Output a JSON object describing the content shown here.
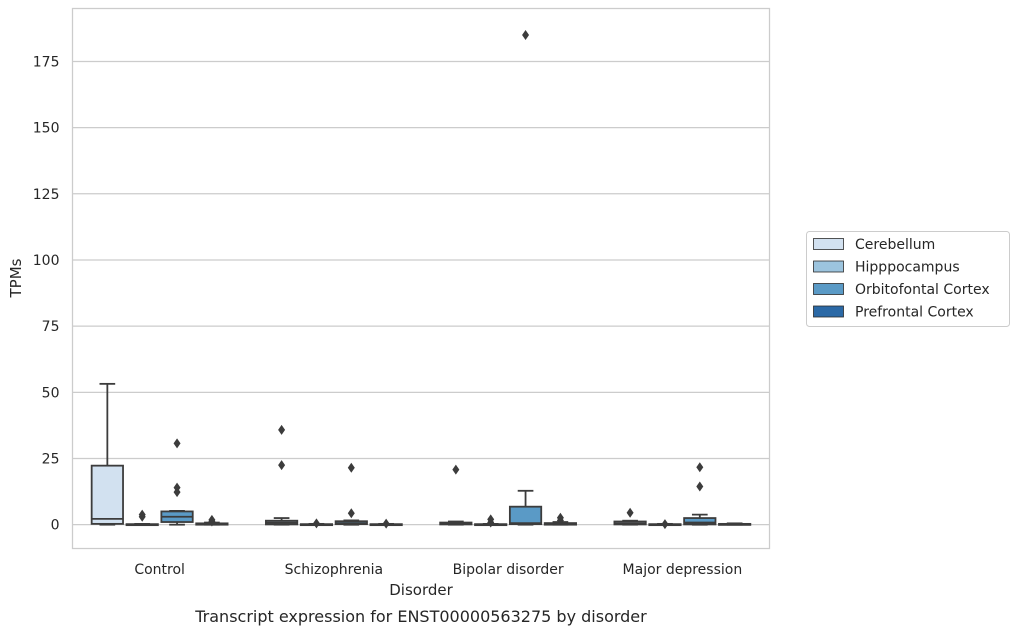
{
  "chart_data": {
    "type": "box",
    "caption": "Transcript expression for ENST00000563275 by disorder",
    "xlabel": "Disorder",
    "ylabel": "TPMs",
    "ylim": [
      -9,
      195
    ],
    "yticks": [
      0,
      25,
      50,
      75,
      100,
      125,
      150,
      175
    ],
    "grid": "horizontal",
    "legend_position": "right",
    "categories": [
      "Control",
      "Schizophrenia",
      "Bipolar disorder",
      "Major depression"
    ],
    "series": [
      {
        "name": "Cerebellum",
        "color": "#d2e1f0",
        "boxes": [
          {
            "q1": 0.3,
            "median": 2.2,
            "q3": 22.3,
            "whisker_low": 0,
            "whisker_high": 53.2,
            "outliers": []
          },
          {
            "q1": 0.1,
            "median": 0.8,
            "q3": 1.5,
            "whisker_low": 0,
            "whisker_high": 2.5,
            "outliers": [
              22.5,
              35.8
            ]
          },
          {
            "q1": 0.1,
            "median": 0.4,
            "q3": 0.8,
            "whisker_low": 0,
            "whisker_high": 1.2,
            "outliers": [
              20.8
            ]
          },
          {
            "q1": 0.1,
            "median": 0.5,
            "q3": 1.2,
            "whisker_low": 0,
            "whisker_high": 1.5,
            "outliers": [
              4.5
            ]
          }
        ]
      },
      {
        "name": "Hipppocampus",
        "color": "#9cc4de",
        "boxes": [
          {
            "q1": 0,
            "median": 0.1,
            "q3": 0.2,
            "whisker_low": 0,
            "whisker_high": 0.3,
            "outliers": [
              3.0,
              3.8
            ]
          },
          {
            "q1": 0,
            "median": 0.1,
            "q3": 0.2,
            "whisker_low": 0,
            "whisker_high": 0.3,
            "outliers": [
              0.5
            ]
          },
          {
            "q1": 0,
            "median": 0.1,
            "q3": 0.2,
            "whisker_low": 0,
            "whisker_high": 0.3,
            "outliers": [
              0.8,
              2.0
            ]
          },
          {
            "q1": 0,
            "median": 0.1,
            "q3": 0.2,
            "whisker_low": 0,
            "whisker_high": 0.3,
            "outliers": [
              0.2
            ]
          }
        ]
      },
      {
        "name": "Orbitofontal Cortex",
        "color": "#5a9ac6",
        "boxes": [
          {
            "q1": 1.0,
            "median": 3.0,
            "q3": 5.0,
            "whisker_low": 0,
            "whisker_high": 5.2,
            "outliers": [
              12.3,
              14.0,
              30.7
            ]
          },
          {
            "q1": 0.2,
            "median": 0.6,
            "q3": 1.3,
            "whisker_low": 0,
            "whisker_high": 1.6,
            "outliers": [
              4.3,
              21.5
            ]
          },
          {
            "q1": 0.2,
            "median": 0.6,
            "q3": 6.8,
            "whisker_low": 0,
            "whisker_high": 12.8,
            "outliers": [
              185.0
            ]
          },
          {
            "q1": 0.1,
            "median": 0.8,
            "q3": 2.5,
            "whisker_low": 0,
            "whisker_high": 3.8,
            "outliers": [
              14.4,
              21.7
            ]
          }
        ]
      },
      {
        "name": "Prefrontal Cortex",
        "color": "#2b69a6",
        "boxes": [
          {
            "q1": 0,
            "median": 0.2,
            "q3": 0.5,
            "whisker_low": 0,
            "whisker_high": 0.8,
            "outliers": [
              1.2,
              1.8
            ]
          },
          {
            "q1": 0,
            "median": 0.1,
            "q3": 0.2,
            "whisker_low": 0,
            "whisker_high": 0.3,
            "outliers": [
              0.4
            ]
          },
          {
            "q1": 0,
            "median": 0.2,
            "q3": 0.6,
            "whisker_low": 0,
            "whisker_high": 1.0,
            "outliers": [
              1.6,
              2.6
            ]
          },
          {
            "q1": 0,
            "median": 0.1,
            "q3": 0.3,
            "whisker_low": 0,
            "whisker_high": 0.5,
            "outliers": []
          }
        ]
      }
    ]
  }
}
